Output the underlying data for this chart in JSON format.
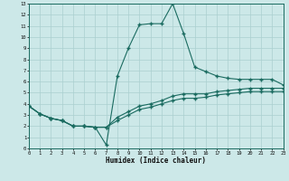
{
  "xlabel": "Humidex (Indice chaleur)",
  "bg_color": "#cce8e8",
  "line_color": "#1a6b60",
  "grid_color": "#aacfcf",
  "xlim": [
    0,
    23
  ],
  "ylim": [
    0,
    13
  ],
  "xticks": [
    0,
    1,
    2,
    3,
    4,
    5,
    6,
    7,
    8,
    9,
    10,
    11,
    12,
    13,
    14,
    15,
    16,
    17,
    18,
    19,
    20,
    21,
    22,
    23
  ],
  "yticks": [
    0,
    1,
    2,
    3,
    4,
    5,
    6,
    7,
    8,
    9,
    10,
    11,
    12,
    13
  ],
  "curve1_x": [
    0,
    1,
    2,
    3,
    4,
    5,
    6,
    7,
    8,
    9,
    10,
    11,
    12,
    13,
    14,
    15,
    16,
    17,
    18,
    19,
    20,
    21,
    22,
    23
  ],
  "curve1_y": [
    3.8,
    3.1,
    2.7,
    2.5,
    2.0,
    2.0,
    1.9,
    0.3,
    6.5,
    9.0,
    11.1,
    11.2,
    11.2,
    13.0,
    10.3,
    7.3,
    6.9,
    6.5,
    6.3,
    6.2,
    6.2,
    6.2,
    6.2,
    5.7
  ],
  "curve2_x": [
    0,
    1,
    2,
    3,
    4,
    5,
    6,
    7,
    8,
    9,
    10,
    11,
    12,
    13,
    14,
    15,
    16,
    17,
    18,
    19,
    20,
    21,
    22,
    23
  ],
  "curve2_y": [
    3.8,
    3.1,
    2.7,
    2.5,
    2.0,
    2.0,
    1.9,
    1.9,
    2.8,
    3.3,
    3.8,
    4.0,
    4.3,
    4.7,
    4.9,
    4.9,
    4.9,
    5.1,
    5.2,
    5.3,
    5.4,
    5.4,
    5.4,
    5.4
  ],
  "curve3_x": [
    0,
    1,
    2,
    3,
    4,
    5,
    6,
    7,
    8,
    9,
    10,
    11,
    12,
    13,
    14,
    15,
    16,
    17,
    18,
    19,
    20,
    21,
    22,
    23
  ],
  "curve3_y": [
    3.8,
    3.1,
    2.7,
    2.5,
    2.0,
    2.0,
    1.9,
    1.9,
    2.5,
    3.0,
    3.5,
    3.7,
    4.0,
    4.3,
    4.5,
    4.5,
    4.6,
    4.8,
    4.9,
    5.0,
    5.1,
    5.1,
    5.1,
    5.1
  ]
}
